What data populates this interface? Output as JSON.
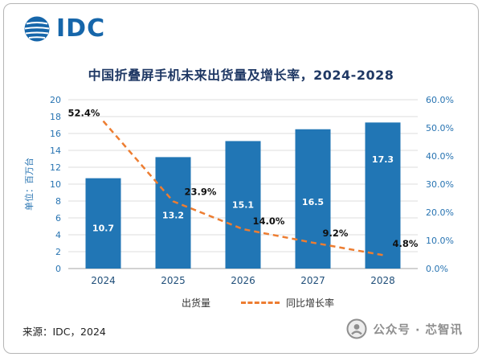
{
  "brand": {
    "logo_text": "IDC"
  },
  "title": "中国折叠屏手机未来出货量及增长率，2024-2028",
  "chart_data": {
    "type": "bar+line",
    "categories": [
      "2024",
      "2025",
      "2026",
      "2027",
      "2028"
    ],
    "series": [
      {
        "name": "出货量",
        "type": "bar",
        "values": [
          10.7,
          13.2,
          15.1,
          16.5,
          17.3
        ],
        "color": "#2176b5"
      },
      {
        "name": "同比增长率",
        "type": "line",
        "values": [
          52.4,
          23.9,
          14.0,
          9.2,
          4.8
        ],
        "color": "#ed7d31",
        "dashed": true
      }
    ],
    "left_axis": {
      "label": "单位：百万台",
      "min": 0,
      "max": 20,
      "step": 2
    },
    "right_axis": {
      "min": 0,
      "max": 60,
      "step": 10,
      "suffix": "%"
    },
    "grid": true,
    "legend_position": "bottom"
  },
  "source": "来源：IDC，2024",
  "watermark": {
    "text": "公众号 · 芯智讯"
  },
  "colors": {
    "bar": "#2176b5",
    "line": "#ed7d31",
    "title": "#1f3864",
    "axis_tick": "#2874b2",
    "year_label": "#1f4e79",
    "grid": "#dcdcdc",
    "axis_line": "#a6a6a6",
    "growth_label": "#111111",
    "bar_label": "#ffffff"
  }
}
